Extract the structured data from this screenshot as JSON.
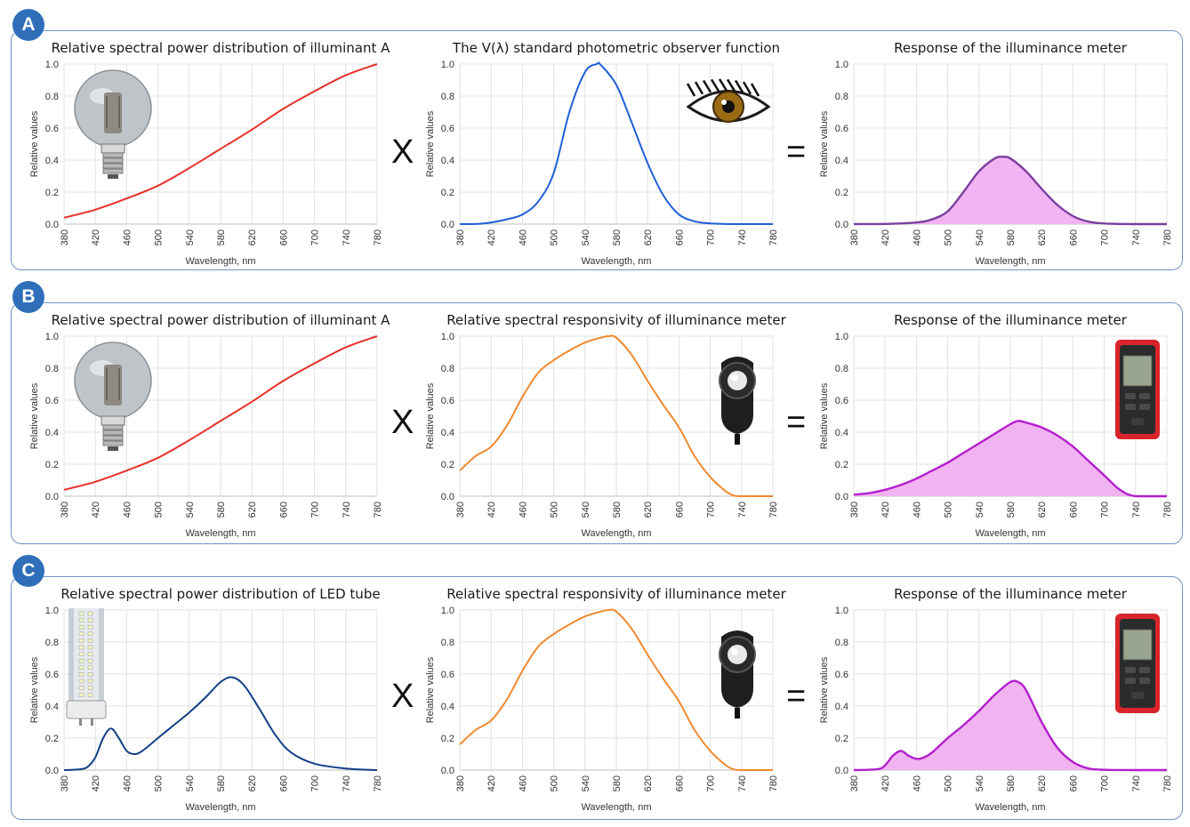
{
  "panels": [
    {
      "label": "A",
      "operators": [
        "X",
        "="
      ]
    },
    {
      "label": "B",
      "operators": [
        "X",
        "="
      ]
    },
    {
      "label": "C",
      "operators": [
        "X",
        "="
      ]
    }
  ],
  "chart_data": [
    {
      "type": "line",
      "panel": "A",
      "title": "Relative spectral power distribution of illuminant A",
      "xlabel": "Wavelength, nm",
      "ylabel": "Relative values",
      "xlim": [
        380,
        780
      ],
      "ylim": [
        0,
        1.0
      ],
      "xticks": [
        380,
        420,
        460,
        500,
        540,
        580,
        620,
        660,
        700,
        740,
        780
      ],
      "yticks": [
        "0.0",
        "0.2",
        "0.4",
        "0.6",
        "0.8",
        "1.0"
      ],
      "grid": true,
      "fill": false,
      "color": "#e8302a",
      "image": "light-bulb",
      "series": [
        {
          "x": [
            380,
            420,
            460,
            500,
            540,
            580,
            620,
            660,
            700,
            740,
            780
          ],
          "y": [
            0.04,
            0.09,
            0.16,
            0.24,
            0.35,
            0.47,
            0.59,
            0.72,
            0.83,
            0.93,
            1.0
          ]
        }
      ]
    },
    {
      "type": "line",
      "panel": "A",
      "title": "The V(λ) standard photometric observer function",
      "xlabel": "Wavelength, nm",
      "ylabel": "Relative values",
      "xlim": [
        380,
        780
      ],
      "ylim": [
        0,
        1.0
      ],
      "xticks": [
        380,
        420,
        460,
        500,
        540,
        580,
        620,
        660,
        700,
        740,
        780
      ],
      "yticks": [
        "0.0",
        "0.2",
        "0.4",
        "0.6",
        "0.8",
        "1.0"
      ],
      "grid": true,
      "fill": false,
      "color": "#1f5fd6",
      "image": "eye",
      "series": [
        {
          "x": [
            380,
            400,
            420,
            440,
            460,
            480,
            500,
            520,
            540,
            555,
            560,
            580,
            600,
            620,
            640,
            660,
            680,
            700,
            720,
            740,
            780
          ],
          "y": [
            0,
            0.001,
            0.01,
            0.03,
            0.06,
            0.14,
            0.32,
            0.7,
            0.95,
            1.0,
            0.995,
            0.87,
            0.63,
            0.38,
            0.18,
            0.06,
            0.017,
            0.004,
            0.001,
            0,
            0
          ]
        }
      ]
    },
    {
      "type": "area",
      "panel": "A",
      "title": "Response of the illuminance meter",
      "xlabel": "Wavelength, nm",
      "ylabel": "Relative values",
      "xlim": [
        380,
        780
      ],
      "ylim": [
        0,
        1.0
      ],
      "xticks": [
        380,
        420,
        460,
        500,
        540,
        580,
        620,
        660,
        700,
        740,
        780
      ],
      "yticks": [
        "0.0",
        "0.2",
        "0.4",
        "0.6",
        "0.8",
        "1.0"
      ],
      "grid": true,
      "fill": true,
      "color": "#7b3f9e",
      "fill_color": "#f2b3f2",
      "image": "",
      "series": [
        {
          "x": [
            380,
            420,
            460,
            480,
            500,
            520,
            540,
            560,
            570,
            580,
            600,
            620,
            640,
            660,
            680,
            700,
            740,
            780
          ],
          "y": [
            0,
            0.001,
            0.01,
            0.03,
            0.08,
            0.2,
            0.33,
            0.41,
            0.42,
            0.41,
            0.33,
            0.22,
            0.12,
            0.05,
            0.015,
            0.004,
            0,
            0
          ]
        }
      ]
    },
    {
      "type": "line",
      "panel": "B",
      "title": "Relative spectral power distribution of illuminant A",
      "xlabel": "Wavelength, nm",
      "ylabel": "Relative values",
      "xlim": [
        380,
        780
      ],
      "ylim": [
        0,
        1.0
      ],
      "xticks": [
        380,
        420,
        460,
        500,
        540,
        580,
        620,
        660,
        700,
        740,
        780
      ],
      "yticks": [
        "0.0",
        "0.2",
        "0.4",
        "0.6",
        "0.8",
        "1.0"
      ],
      "grid": true,
      "fill": false,
      "color": "#e8302a",
      "image": "light-bulb",
      "series": [
        {
          "x": [
            380,
            420,
            460,
            500,
            540,
            580,
            620,
            660,
            700,
            740,
            780
          ],
          "y": [
            0.04,
            0.09,
            0.16,
            0.24,
            0.35,
            0.47,
            0.59,
            0.72,
            0.83,
            0.93,
            1.0
          ]
        }
      ]
    },
    {
      "type": "line",
      "panel": "B",
      "title": "Relative spectral responsivity of illuminance meter",
      "xlabel": "Wavelength, nm",
      "ylabel": "Relative values",
      "xlim": [
        380,
        780
      ],
      "ylim": [
        0,
        1.0
      ],
      "xticks": [
        380,
        420,
        460,
        500,
        540,
        580,
        620,
        660,
        700,
        740,
        780
      ],
      "yticks": [
        "0.0",
        "0.2",
        "0.4",
        "0.6",
        "0.8",
        "1.0"
      ],
      "grid": true,
      "fill": false,
      "color": "#f0892f",
      "image": "light-sensor",
      "series": [
        {
          "x": [
            380,
            400,
            420,
            440,
            460,
            480,
            500,
            520,
            540,
            560,
            570,
            580,
            600,
            620,
            640,
            660,
            680,
            700,
            720,
            730,
            740,
            780
          ],
          "y": [
            0.16,
            0.25,
            0.31,
            0.44,
            0.62,
            0.77,
            0.85,
            0.91,
            0.96,
            0.99,
            1.0,
            0.99,
            0.88,
            0.72,
            0.57,
            0.43,
            0.25,
            0.12,
            0.03,
            0.005,
            0,
            0
          ]
        }
      ]
    },
    {
      "type": "area",
      "panel": "B",
      "title": "Response of the illuminance meter",
      "xlabel": "Wavelength, nm",
      "ylabel": "Relative values",
      "xlim": [
        380,
        780
      ],
      "ylim": [
        0,
        1.0
      ],
      "xticks": [
        380,
        420,
        460,
        500,
        540,
        580,
        620,
        660,
        700,
        740,
        780
      ],
      "yticks": [
        "0.0",
        "0.2",
        "0.4",
        "0.6",
        "0.8",
        "1.0"
      ],
      "grid": true,
      "fill": true,
      "color": "#b21fcc",
      "fill_color": "#f2b3f2",
      "image": "lux-meter",
      "series": [
        {
          "x": [
            380,
            400,
            420,
            440,
            460,
            480,
            500,
            520,
            540,
            560,
            580,
            590,
            600,
            620,
            640,
            660,
            680,
            700,
            720,
            740,
            780
          ],
          "y": [
            0.01,
            0.02,
            0.04,
            0.07,
            0.11,
            0.16,
            0.21,
            0.27,
            0.33,
            0.39,
            0.45,
            0.47,
            0.46,
            0.43,
            0.38,
            0.31,
            0.22,
            0.13,
            0.04,
            0,
            0
          ]
        }
      ]
    },
    {
      "type": "line",
      "panel": "C",
      "title": "Relative spectral power distribution of LED tube",
      "xlabel": "Wavelength, nm",
      "ylabel": "Relative values",
      "xlim": [
        380,
        780
      ],
      "ylim": [
        0,
        1.0
      ],
      "xticks": [
        380,
        420,
        460,
        500,
        540,
        580,
        620,
        660,
        700,
        740,
        780
      ],
      "yticks": [
        "0.0",
        "0.2",
        "0.4",
        "0.6",
        "0.8",
        "1.0"
      ],
      "grid": true,
      "fill": false,
      "color": "#123f86",
      "image": "led-tube",
      "series": [
        {
          "x": [
            380,
            400,
            410,
            420,
            430,
            440,
            450,
            460,
            470,
            480,
            500,
            520,
            540,
            560,
            580,
            595,
            610,
            630,
            650,
            670,
            700,
            740,
            780
          ],
          "y": [
            0,
            0.005,
            0.02,
            0.08,
            0.2,
            0.26,
            0.2,
            0.12,
            0.1,
            0.12,
            0.2,
            0.28,
            0.36,
            0.45,
            0.55,
            0.58,
            0.53,
            0.38,
            0.22,
            0.11,
            0.04,
            0.01,
            0
          ]
        }
      ]
    },
    {
      "type": "line",
      "panel": "C",
      "title": "Relative spectral responsivity of illuminance meter",
      "xlabel": "Wavelength, nm",
      "ylabel": "Relative values",
      "xlim": [
        380,
        780
      ],
      "ylim": [
        0,
        1.0
      ],
      "xticks": [
        380,
        420,
        460,
        500,
        540,
        580,
        620,
        660,
        700,
        740,
        780
      ],
      "yticks": [
        "0.0",
        "0.2",
        "0.4",
        "0.6",
        "0.8",
        "1.0"
      ],
      "grid": true,
      "fill": false,
      "color": "#f0892f",
      "image": "light-sensor",
      "series": [
        {
          "x": [
            380,
            400,
            420,
            440,
            460,
            480,
            500,
            520,
            540,
            560,
            570,
            580,
            600,
            620,
            640,
            660,
            680,
            700,
            720,
            730,
            740,
            780
          ],
          "y": [
            0.16,
            0.25,
            0.31,
            0.44,
            0.62,
            0.77,
            0.85,
            0.91,
            0.96,
            0.99,
            1.0,
            0.99,
            0.88,
            0.72,
            0.57,
            0.43,
            0.25,
            0.12,
            0.03,
            0.005,
            0,
            0
          ]
        }
      ]
    },
    {
      "type": "area",
      "panel": "C",
      "title": "Response of the illuminance meter",
      "xlabel": "Wavelength, nm",
      "ylabel": "Relative values",
      "xlim": [
        380,
        780
      ],
      "ylim": [
        0,
        1.0
      ],
      "xticks": [
        380,
        420,
        460,
        500,
        540,
        580,
        620,
        660,
        700,
        740,
        780
      ],
      "yticks": [
        "0.0",
        "0.2",
        "0.4",
        "0.6",
        "0.8",
        "1.0"
      ],
      "grid": true,
      "fill": true,
      "color": "#b21fcc",
      "fill_color": "#f2b3f2",
      "image": "lux-meter",
      "series": [
        {
          "x": [
            380,
            410,
            420,
            430,
            440,
            450,
            460,
            470,
            480,
            500,
            520,
            540,
            560,
            580,
            590,
            600,
            620,
            640,
            660,
            680,
            700,
            740,
            780
          ],
          "y": [
            0,
            0.005,
            0.03,
            0.09,
            0.12,
            0.09,
            0.07,
            0.08,
            0.11,
            0.2,
            0.28,
            0.37,
            0.47,
            0.55,
            0.55,
            0.5,
            0.3,
            0.14,
            0.05,
            0.01,
            0.002,
            0,
            0
          ]
        }
      ]
    }
  ]
}
